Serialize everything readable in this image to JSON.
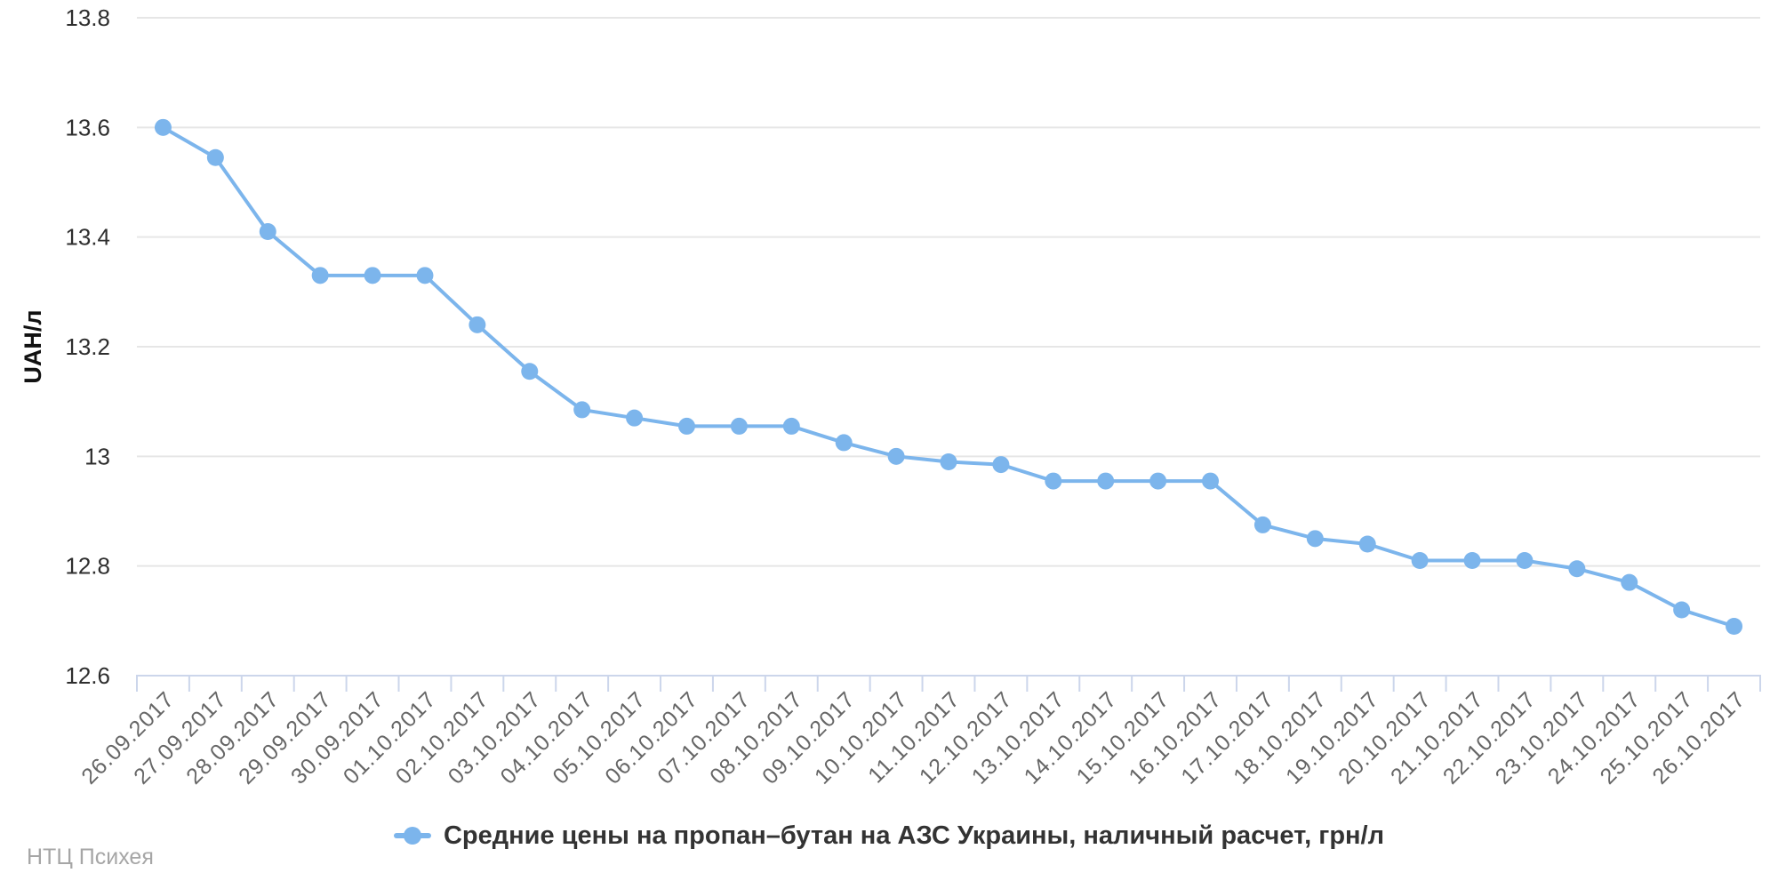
{
  "chart_data": {
    "type": "line",
    "title": "",
    "categories": [
      "26.09.2017",
      "27.09.2017",
      "28.09.2017",
      "29.09.2017",
      "30.09.2017",
      "01.10.2017",
      "02.10.2017",
      "03.10.2017",
      "04.10.2017",
      "05.10.2017",
      "06.10.2017",
      "07.10.2017",
      "08.10.2017",
      "09.10.2017",
      "10.10.2017",
      "11.10.2017",
      "12.10.2017",
      "13.10.2017",
      "14.10.2017",
      "15.10.2017",
      "16.10.2017",
      "17.10.2017",
      "18.10.2017",
      "19.10.2017",
      "20.10.2017",
      "21.10.2017",
      "22.10.2017",
      "23.10.2017",
      "24.10.2017",
      "25.10.2017",
      "26.10.2017"
    ],
    "series": [
      {
        "name": "Средние цены на пропан–бутан на АЗС Украины, наличный расчет, грн/л",
        "color": "#7cb5ec",
        "values": [
          13.6,
          13.545,
          13.41,
          13.33,
          13.33,
          13.33,
          13.24,
          13.155,
          13.085,
          13.07,
          13.055,
          13.055,
          13.055,
          13.025,
          13.0,
          12.99,
          12.985,
          12.955,
          12.955,
          12.955,
          12.955,
          12.875,
          12.85,
          12.84,
          12.81,
          12.81,
          12.81,
          12.795,
          12.77,
          12.72,
          12.69
        ]
      }
    ],
    "xlabel": "",
    "ylabel": "UAH/л",
    "ylim": [
      12.6,
      13.8
    ],
    "yticks": [
      13.8,
      13.6,
      13.4,
      13.2,
      13,
      12.8,
      12.6
    ],
    "grid": true,
    "marker": "circle",
    "legend_position": "bottom",
    "colors": {
      "series": "#7cb5ec",
      "grid": "#e6e6e6",
      "axis": "#ccd6eb",
      "x_label": "#666666",
      "y_label": "#2e2e2e",
      "y_title": "#111111",
      "legend_text": "#333333",
      "credit_text": "#a6a6a6"
    }
  },
  "footer": {
    "credit": "НТЦ Психея"
  }
}
